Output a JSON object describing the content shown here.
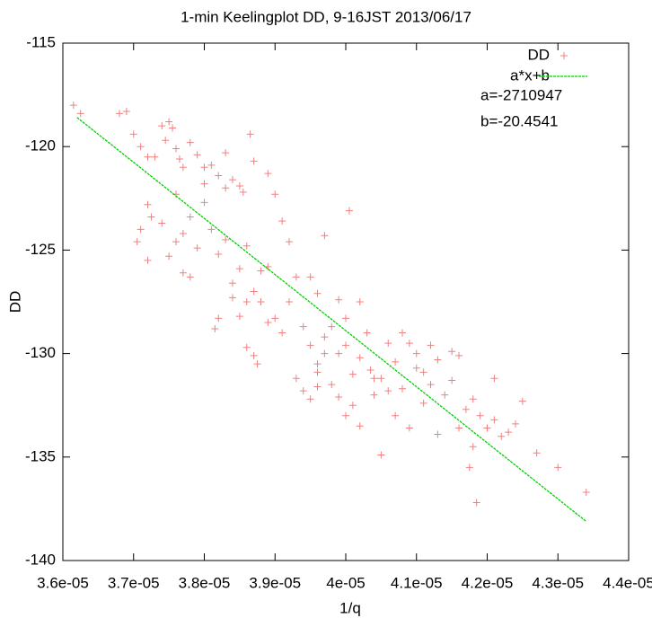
{
  "chart_data": {
    "type": "scatter",
    "title": "1-min Keelingplot DD, 9-16JST 2013/06/17",
    "xlabel": "1/q",
    "ylabel": "DD",
    "xlim": [
      3.6e-05,
      4.4e-05
    ],
    "ylim": [
      -140,
      -115
    ],
    "xticks": [
      {
        "value": 3.6e-05,
        "label": "3.6e-05"
      },
      {
        "value": 3.7e-05,
        "label": "3.7e-05"
      },
      {
        "value": 3.8e-05,
        "label": "3.8e-05"
      },
      {
        "value": 3.9e-05,
        "label": "3.9e-05"
      },
      {
        "value": 4e-05,
        "label": "4e-05"
      },
      {
        "value": 4.1e-05,
        "label": "4.1e-05"
      },
      {
        "value": 4.2e-05,
        "label": "4.2e-05"
      },
      {
        "value": 4.3e-05,
        "label": "4.3e-05"
      },
      {
        "value": 4.4e-05,
        "label": "4.4e-05"
      }
    ],
    "yticks": [
      -115,
      -120,
      -125,
      -130,
      -135,
      -140
    ],
    "grid": false,
    "legend": "top-right",
    "annotations": [
      "a=-2710947",
      "b=-20.4541"
    ],
    "series": [
      {
        "name": "DD",
        "color": "#f08080",
        "type": "scatter",
        "x": [
          3.615e-05,
          3.625e-05,
          3.68e-05,
          3.69e-05,
          3.7e-05,
          3.71e-05,
          3.72e-05,
          3.74e-05,
          3.745e-05,
          3.75e-05,
          3.755e-05,
          3.76e-05,
          3.765e-05,
          3.77e-05,
          3.78e-05,
          3.79e-05,
          3.8e-05,
          3.81e-05,
          3.82e-05,
          3.83e-05,
          3.84e-05,
          3.85e-05,
          3.855e-05,
          3.865e-05,
          3.87e-05,
          3.89e-05,
          3.9e-05,
          3.72e-05,
          3.725e-05,
          3.71e-05,
          3.705e-05,
          3.72e-05,
          3.74e-05,
          3.76e-05,
          3.77e-05,
          3.78e-05,
          3.79e-05,
          3.8e-05,
          3.81e-05,
          3.82e-05,
          3.83e-05,
          3.84e-05,
          3.85e-05,
          3.86e-05,
          3.87e-05,
          3.88e-05,
          3.89e-05,
          3.91e-05,
          3.92e-05,
          3.93e-05,
          3.95e-05,
          3.96e-05,
          3.97e-05,
          3.99e-05,
          4.005e-05,
          3.77e-05,
          3.78e-05,
          3.82e-05,
          3.815e-05,
          3.85e-05,
          3.86e-05,
          3.87e-05,
          3.875e-05,
          3.9e-05,
          3.91e-05,
          3.92e-05,
          3.94e-05,
          3.95e-05,
          3.96e-05,
          3.97e-05,
          3.98e-05,
          3.99e-05,
          3.93e-05,
          3.94e-05,
          3.95e-05,
          3.96e-05,
          3.98e-05,
          3.99e-05,
          4e-05,
          4.01e-05,
          4.02e-05,
          4.03e-05,
          4.035e-05,
          4.04e-05,
          4.05e-05,
          4.06e-05,
          4.07e-05,
          4.08e-05,
          4.09e-05,
          4.1e-05,
          4.11e-05,
          4.12e-05,
          4.13e-05,
          4.14e-05,
          4.15e-05,
          4.16e-05,
          4.17e-05,
          4.18e-05,
          4.19e-05,
          4.2e-05,
          4.21e-05,
          4.22e-05,
          4.23e-05,
          4.24e-05,
          4.25e-05,
          4.21e-05,
          4.16e-05,
          4.18e-05,
          4.175e-05,
          4.185e-05,
          4.05e-05,
          4.13e-05,
          4.27e-05,
          4.3e-05,
          4.34e-05,
          4.07e-05,
          4.09e-05,
          4.02e-05,
          4.04e-05,
          4.11e-05,
          4.08e-05,
          4.1e-05,
          4.12e-05,
          4.15e-05,
          3.96e-05,
          3.97e-05,
          4e-05,
          4.02e-05,
          4.06e-05,
          3.88e-05,
          3.89e-05,
          4e-05,
          4.01e-05,
          3.86e-05,
          3.84e-05,
          3.75e-05,
          3.76e-05,
          3.73e-05,
          3.8e-05,
          3.83e-05
        ],
        "values": [
          -118.0,
          -118.4,
          -118.4,
          -118.3,
          -119.4,
          -120.0,
          -120.5,
          -119.0,
          -119.7,
          -118.8,
          -119.1,
          -120.1,
          -120.6,
          -121.0,
          -119.8,
          -120.4,
          -121.0,
          -120.9,
          -121.4,
          -120.3,
          -121.6,
          -121.9,
          -122.2,
          -119.4,
          -120.7,
          -121.3,
          -122.3,
          -122.8,
          -123.4,
          -124.0,
          -124.6,
          -125.5,
          -123.7,
          -124.6,
          -124.2,
          -123.4,
          -124.9,
          -122.7,
          -124.0,
          -125.2,
          -124.5,
          -126.6,
          -125.9,
          -124.8,
          -127.0,
          -126.0,
          -125.8,
          -123.6,
          -124.6,
          -126.3,
          -126.3,
          -127.1,
          -124.3,
          -127.4,
          -123.1,
          -126.1,
          -126.3,
          -128.3,
          -128.8,
          -128.2,
          -127.5,
          -130.1,
          -130.5,
          -128.3,
          -129.0,
          -127.5,
          -128.7,
          -129.6,
          -130.5,
          -129.2,
          -128.7,
          -130.0,
          -131.2,
          -131.8,
          -132.2,
          -131.6,
          -131.5,
          -132.1,
          -133.0,
          -131.0,
          -130.2,
          -129.0,
          -130.8,
          -132.0,
          -131.2,
          -131.8,
          -130.4,
          -129.0,
          -129.5,
          -130.0,
          -130.9,
          -131.5,
          -130.3,
          -132.0,
          -131.3,
          -130.1,
          -132.7,
          -132.2,
          -133.0,
          -133.6,
          -133.2,
          -134.0,
          -133.8,
          -133.4,
          -132.3,
          -131.2,
          -133.6,
          -134.5,
          -135.5,
          -137.2,
          -134.9,
          -133.9,
          -134.8,
          -135.5,
          -136.7,
          -133.0,
          -133.6,
          -133.5,
          -131.2,
          -132.4,
          -131.7,
          -130.7,
          -129.6,
          -129.9,
          -130.9,
          -130.0,
          -129.6,
          -127.5,
          -129.5,
          -127.5,
          -128.5,
          -128.3,
          -132.5,
          -129.7,
          -127.3,
          -125.3,
          -122.3,
          -120.5,
          -121.8,
          -122.0
        ]
      },
      {
        "name": "a*x+b",
        "color": "#00d000",
        "type": "line",
        "x": [
          3.62e-05,
          4.34e-05
        ],
        "values": [
          -118.59,
          -138.11
        ]
      }
    ]
  }
}
